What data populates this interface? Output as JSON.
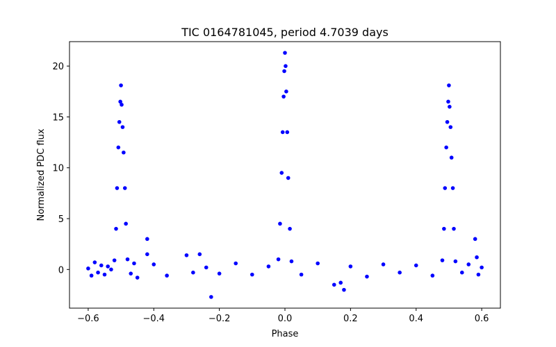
{
  "chart_data": {
    "type": "scatter",
    "title": "TIC 0164781045, period 4.7039 days",
    "xlabel": "Phase",
    "ylabel": "Normalized PDC flux",
    "xlim": [
      -0.657,
      0.657
    ],
    "ylim": [
      -3.8,
      22.4
    ],
    "xticks": [
      -0.6,
      -0.4,
      -0.2,
      0.0,
      0.2,
      0.4,
      0.6
    ],
    "xtick_labels": [
      "−0.6",
      "−0.4",
      "−0.2",
      "0.0",
      "0.2",
      "0.4",
      "0.6"
    ],
    "yticks": [
      0,
      5,
      10,
      15,
      20
    ],
    "ytick_labels": [
      "0",
      "5",
      "10",
      "15",
      "20"
    ],
    "grid": false,
    "marker_color": "#0000ff",
    "series": [
      {
        "points": [
          [
            -0.6,
            0.1
          ],
          [
            -0.59,
            -0.6
          ],
          [
            -0.58,
            0.7
          ],
          [
            -0.57,
            -0.3
          ],
          [
            -0.56,
            0.4
          ],
          [
            -0.55,
            -0.5
          ],
          [
            -0.54,
            0.3
          ],
          [
            -0.53,
            0.0
          ],
          [
            -0.52,
            0.9
          ],
          [
            -0.515,
            4.0
          ],
          [
            -0.512,
            8.0
          ],
          [
            -0.508,
            12.0
          ],
          [
            -0.505,
            14.5
          ],
          [
            -0.502,
            16.5
          ],
          [
            -0.5,
            18.1
          ],
          [
            -0.498,
            16.2
          ],
          [
            -0.495,
            14.0
          ],
          [
            -0.492,
            11.5
          ],
          [
            -0.488,
            8.0
          ],
          [
            -0.485,
            4.5
          ],
          [
            -0.48,
            1.0
          ],
          [
            -0.47,
            -0.4
          ],
          [
            -0.46,
            0.6
          ],
          [
            -0.45,
            -0.8
          ],
          [
            -0.42,
            3.0
          ],
          [
            -0.42,
            1.5
          ],
          [
            -0.4,
            0.5
          ],
          [
            -0.36,
            -0.6
          ],
          [
            -0.3,
            1.4
          ],
          [
            -0.28,
            -0.3
          ],
          [
            -0.26,
            1.5
          ],
          [
            -0.24,
            0.2
          ],
          [
            -0.225,
            -2.7
          ],
          [
            -0.2,
            -0.4
          ],
          [
            -0.15,
            0.6
          ],
          [
            -0.1,
            -0.5
          ],
          [
            -0.05,
            0.3
          ],
          [
            -0.02,
            1.0
          ],
          [
            -0.015,
            4.5
          ],
          [
            -0.01,
            9.5
          ],
          [
            -0.007,
            13.5
          ],
          [
            -0.004,
            17.0
          ],
          [
            -0.002,
            19.5
          ],
          [
            0.0,
            21.3
          ],
          [
            0.002,
            20.0
          ],
          [
            0.004,
            17.5
          ],
          [
            0.007,
            13.5
          ],
          [
            0.01,
            9.0
          ],
          [
            0.015,
            4.0
          ],
          [
            0.02,
            0.8
          ],
          [
            0.05,
            -0.5
          ],
          [
            0.1,
            0.6
          ],
          [
            0.15,
            -1.5
          ],
          [
            0.17,
            -1.3
          ],
          [
            0.18,
            -2.0
          ],
          [
            0.2,
            0.3
          ],
          [
            0.25,
            -0.7
          ],
          [
            0.3,
            0.5
          ],
          [
            0.35,
            -0.3
          ],
          [
            0.4,
            0.4
          ],
          [
            0.45,
            -0.6
          ],
          [
            0.48,
            0.9
          ],
          [
            0.485,
            4.0
          ],
          [
            0.488,
            8.0
          ],
          [
            0.492,
            12.0
          ],
          [
            0.495,
            14.5
          ],
          [
            0.498,
            16.5
          ],
          [
            0.5,
            18.1
          ],
          [
            0.502,
            16.0
          ],
          [
            0.505,
            14.0
          ],
          [
            0.508,
            11.0
          ],
          [
            0.512,
            8.0
          ],
          [
            0.515,
            4.0
          ],
          [
            0.52,
            0.8
          ],
          [
            0.54,
            -0.3
          ],
          [
            0.56,
            0.5
          ],
          [
            0.58,
            3.0
          ],
          [
            0.585,
            1.2
          ],
          [
            0.59,
            -0.5
          ],
          [
            0.6,
            0.2
          ]
        ]
      }
    ]
  }
}
